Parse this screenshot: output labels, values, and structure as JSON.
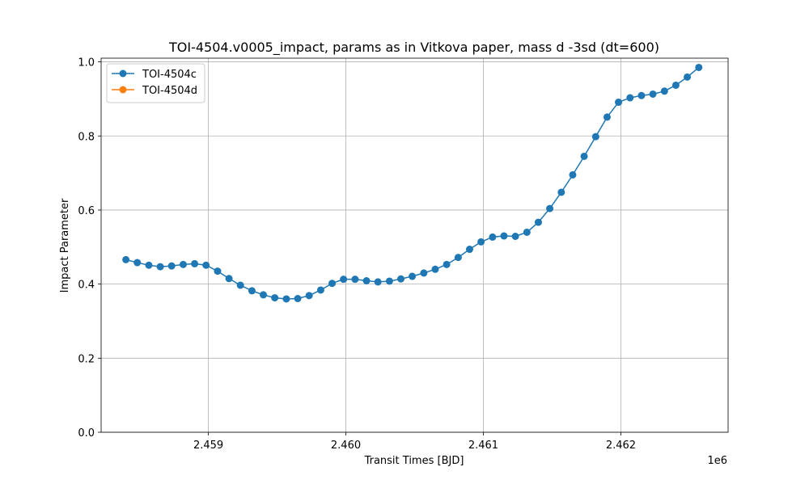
{
  "chart_data": {
    "type": "line",
    "title": "TOI-4504.v0005_impact, params as in Vitkova paper, mass d -3sd (dt=600)",
    "xlabel": "Transit Times [BJD]",
    "ylabel": "Impact Parameter",
    "x_offset_label": "1e6",
    "xlim": [
      2458220,
      2462780
    ],
    "ylim": [
      0.0,
      1.01
    ],
    "x_ticks": [
      2459000,
      2460000,
      2461000,
      2462000
    ],
    "x_tick_labels": [
      "2.459",
      "2.460",
      "2.461",
      "2.462"
    ],
    "y_ticks": [
      0.0,
      0.2,
      0.4,
      0.6,
      0.8,
      1.0
    ],
    "y_tick_labels": [
      "0.0",
      "0.2",
      "0.4",
      "0.6",
      "0.8",
      "1.0"
    ],
    "grid": true,
    "legend_position": "top-left",
    "series": [
      {
        "name": "TOI-4504c",
        "color": "#1f77b4",
        "marker": "circle",
        "x": [
          2458400,
          2458483,
          2458567,
          2458650,
          2458733,
          2458817,
          2458900,
          2458983,
          2459067,
          2459150,
          2459233,
          2459317,
          2459400,
          2459483,
          2459567,
          2459650,
          2459733,
          2459817,
          2459900,
          2459983,
          2460067,
          2460150,
          2460233,
          2460317,
          2460400,
          2460483,
          2460567,
          2460650,
          2460733,
          2460817,
          2460900,
          2460983,
          2461067,
          2461150,
          2461233,
          2461317,
          2461400,
          2461483,
          2461567,
          2461650,
          2461733,
          2461817,
          2461900,
          2461983,
          2462067,
          2462150,
          2462233,
          2462317,
          2462400,
          2462483,
          2462567
        ],
        "y": [
          0.466,
          0.458,
          0.451,
          0.447,
          0.449,
          0.453,
          0.455,
          0.451,
          0.435,
          0.415,
          0.397,
          0.382,
          0.371,
          0.363,
          0.36,
          0.361,
          0.369,
          0.384,
          0.402,
          0.413,
          0.413,
          0.409,
          0.406,
          0.408,
          0.414,
          0.421,
          0.43,
          0.44,
          0.453,
          0.472,
          0.494,
          0.514,
          0.527,
          0.53,
          0.529,
          0.54,
          0.567,
          0.604,
          0.648,
          0.695,
          0.745,
          0.798,
          0.851,
          0.891,
          0.903,
          0.909,
          0.913,
          0.921,
          0.937,
          0.959,
          0.985
        ]
      },
      {
        "name": "TOI-4504d",
        "color": "#ff7f0e",
        "marker": "circle",
        "x": [],
        "y": []
      }
    ]
  }
}
